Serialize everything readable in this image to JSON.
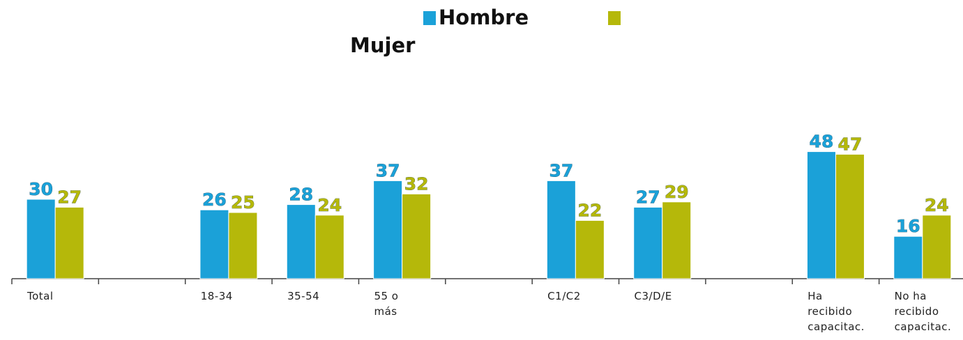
{
  "chart_data": {
    "type": "bar",
    "categories": [
      "Total",
      null,
      "18-34",
      "35-54",
      "55 o más",
      null,
      "C1/C2",
      "C3/D/E",
      null,
      "Ha recibido capacitac.",
      "No ha recibido capacitac."
    ],
    "series": [
      {
        "name": "Hombre",
        "color": "#1ba1d8",
        "values": [
          30,
          null,
          26,
          28,
          37,
          null,
          37,
          27,
          null,
          48,
          16
        ]
      },
      {
        "name": "Mujer",
        "color": "#b5b80a",
        "values": [
          27,
          null,
          25,
          24,
          32,
          null,
          22,
          29,
          null,
          47,
          24
        ]
      }
    ],
    "ylim": [
      0,
      50
    ]
  }
}
